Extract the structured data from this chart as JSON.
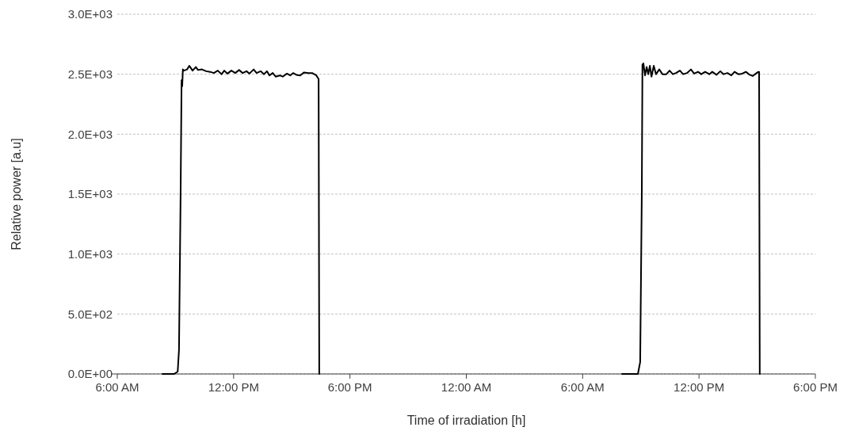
{
  "chart_data": {
    "type": "line",
    "xlabel": "Time of irradiation [h]",
    "ylabel": "Relative power [a.u]",
    "xlim": [
      "2000-01-01T06:00",
      "2000-01-02T18:00"
    ],
    "ylim": [
      0,
      3000
    ],
    "xticks": [
      {
        "value": "2000-01-01T06:00",
        "label": "6:00 AM"
      },
      {
        "value": "2000-01-01T12:00",
        "label": "12:00 PM"
      },
      {
        "value": "2000-01-01T18:00",
        "label": "6:00 PM"
      },
      {
        "value": "2000-01-02T00:00",
        "label": "12:00 AM"
      },
      {
        "value": "2000-01-02T06:00",
        "label": "6:00 AM"
      },
      {
        "value": "2000-01-02T12:00",
        "label": "12:00 PM"
      },
      {
        "value": "2000-01-02T18:00",
        "label": "6:00 PM"
      }
    ],
    "yticks": [
      {
        "value": 0,
        "label": "0.0E+00"
      },
      {
        "value": 500,
        "label": "5.0E+02"
      },
      {
        "value": 1000,
        "label": "1.0E+03"
      },
      {
        "value": 1500,
        "label": "1.5E+03"
      },
      {
        "value": 2000,
        "label": "2.0E+03"
      },
      {
        "value": 2500,
        "label": "2.5E+03"
      },
      {
        "value": 3000,
        "label": "3.0E+03"
      }
    ],
    "grid": "y",
    "marker": "none",
    "line_style": "solid",
    "series": [
      {
        "color": "#000000",
        "x": [
          "2000-01-01T08:20",
          "2000-01-01T08:56",
          "2000-01-01T09:07",
          "2000-01-01T09:11",
          "2000-01-01T09:16",
          "2000-01-01T09:19",
          "2000-01-01T09:21",
          "2000-01-01T09:23",
          "2000-01-01T09:26",
          "2000-01-01T09:36",
          "2000-01-01T09:43",
          "2000-01-01T09:53",
          "2000-01-01T10:03",
          "2000-01-01T10:10",
          "2000-01-01T10:22",
          "2000-01-01T10:35",
          "2000-01-01T10:47",
          "2000-01-01T10:59",
          "2000-01-01T11:11",
          "2000-01-01T11:23",
          "2000-01-01T11:31",
          "2000-01-01T11:41",
          "2000-01-01T11:53",
          "2000-01-01T12:05",
          "2000-01-01T12:17",
          "2000-01-01T12:28",
          "2000-01-01T12:40",
          "2000-01-01T12:49",
          "2000-01-01T13:02",
          "2000-01-01T13:11",
          "2000-01-01T13:24",
          "2000-01-01T13:34",
          "2000-01-01T13:43",
          "2000-01-01T13:51",
          "2000-01-01T14:01",
          "2000-01-01T14:10",
          "2000-01-01T14:23",
          "2000-01-01T14:32",
          "2000-01-01T14:45",
          "2000-01-01T14:55",
          "2000-01-01T15:04",
          "2000-01-01T15:14",
          "2000-01-01T15:26",
          "2000-01-01T15:38",
          "2000-01-01T15:51",
          "2000-01-01T16:03",
          "2000-01-01T16:16",
          "2000-01-01T16:23",
          "2000-01-01T16:25",
          "2000-01-01T16:30",
          "2000-01-02T08:02",
          "2000-01-02T08:51",
          "2000-01-02T08:58",
          "2000-01-02T09:03",
          "2000-01-02T09:05",
          "2000-01-02T09:08",
          "2000-01-02T09:13",
          "2000-01-02T09:18",
          "2000-01-02T09:23",
          "2000-01-02T09:28",
          "2000-01-02T09:33",
          "2000-01-02T09:40",
          "2000-01-02T09:47",
          "2000-01-02T09:57",
          "2000-01-02T10:07",
          "2000-01-02T10:19",
          "2000-01-02T10:29",
          "2000-01-02T10:39",
          "2000-01-02T10:49",
          "2000-01-02T11:01",
          "2000-01-02T11:11",
          "2000-01-02T11:23",
          "2000-01-02T11:35",
          "2000-01-02T11:45",
          "2000-01-02T11:57",
          "2000-01-02T12:07",
          "2000-01-02T12:19",
          "2000-01-02T12:32",
          "2000-01-02T12:41",
          "2000-01-02T12:54",
          "2000-01-02T13:06",
          "2000-01-02T13:16",
          "2000-01-02T13:28",
          "2000-01-02T13:40",
          "2000-01-02T13:50",
          "2000-01-02T14:02",
          "2000-01-02T14:14",
          "2000-01-02T14:25",
          "2000-01-02T14:37",
          "2000-01-02T14:46",
          "2000-01-02T14:56",
          "2000-01-02T15:04",
          "2000-01-02T15:06",
          "2000-01-02T15:08"
        ],
        "values": [
          0,
          0,
          20,
          200,
          1500,
          2450,
          2400,
          2540,
          2530,
          2540,
          2570,
          2530,
          2560,
          2535,
          2540,
          2525,
          2520,
          2510,
          2530,
          2500,
          2530,
          2505,
          2530,
          2510,
          2535,
          2510,
          2525,
          2505,
          2540,
          2510,
          2525,
          2500,
          2525,
          2490,
          2510,
          2480,
          2490,
          2480,
          2505,
          2490,
          2510,
          2495,
          2490,
          2515,
          2510,
          2510,
          2490,
          2460,
          0,
          null,
          0,
          0,
          100,
          1500,
          2580,
          2590,
          2490,
          2560,
          2500,
          2570,
          2480,
          2570,
          2500,
          2540,
          2500,
          2500,
          2530,
          2500,
          2510,
          2530,
          2500,
          2510,
          2540,
          2505,
          2520,
          2500,
          2520,
          2500,
          2520,
          2495,
          2525,
          2500,
          2510,
          2490,
          2520,
          2500,
          2505,
          2520,
          2495,
          2485,
          2505,
          2520,
          2520,
          0
        ]
      }
    ]
  }
}
